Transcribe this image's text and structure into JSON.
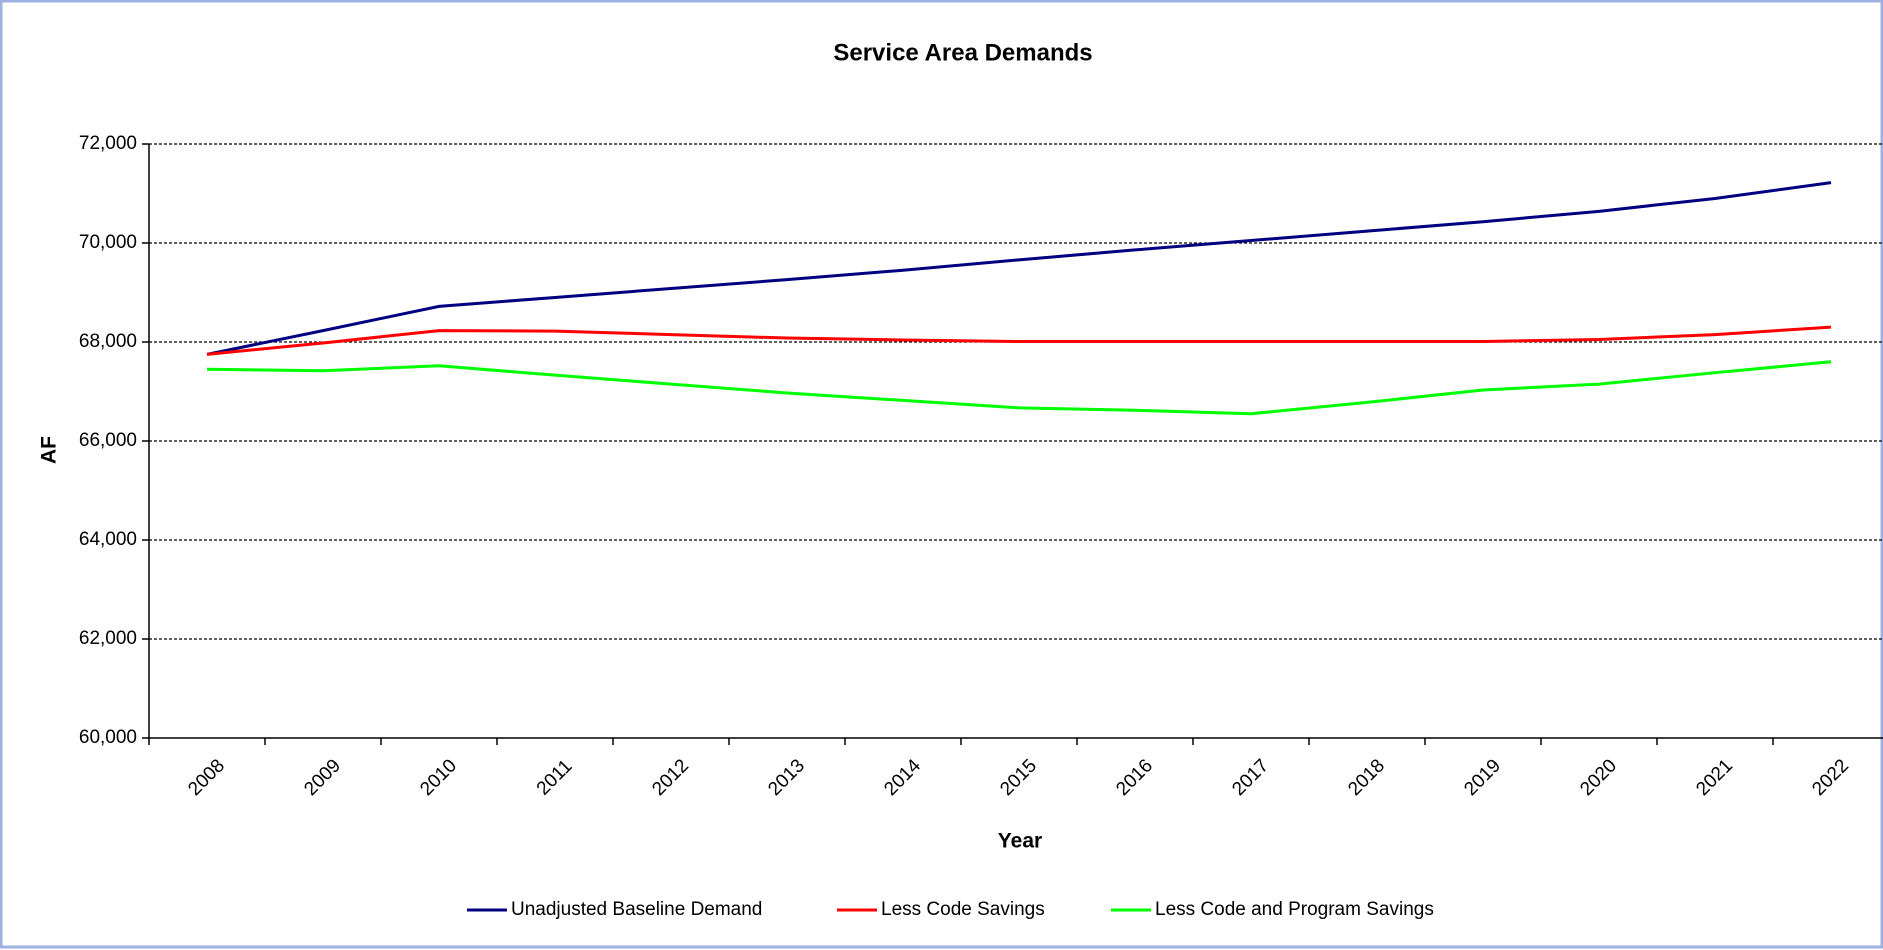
{
  "chart_data": {
    "type": "line",
    "title": "Service Area Demands",
    "xlabel": "Year",
    "ylabel": "AF",
    "categories": [
      "2008",
      "2009",
      "2010",
      "2011",
      "2012",
      "2013",
      "2014",
      "2015",
      "2016",
      "2017",
      "2018",
      "2019",
      "2020",
      "2021",
      "2022"
    ],
    "series": [
      {
        "name": "Unadjusted Baseline Demand",
        "color": "#000080",
        "values": [
          67750,
          68230,
          68720,
          68900,
          69080,
          69260,
          69450,
          69660,
          69860,
          70050,
          70240,
          70430,
          70640,
          70900,
          71220
        ]
      },
      {
        "name": "Less Code Savings",
        "color": "#ff0000",
        "values": [
          67750,
          67980,
          68230,
          68220,
          68150,
          68080,
          68040,
          68010,
          68010,
          68010,
          68010,
          68010,
          68050,
          68150,
          68300
        ]
      },
      {
        "name": "Less Code and Program Savings",
        "color": "#00ff00",
        "values": [
          67450,
          67420,
          67520,
          67330,
          67150,
          66970,
          66820,
          66670,
          66620,
          66550,
          66780,
          67030,
          67150,
          67380,
          67600
        ]
      }
    ],
    "ylim": [
      60000,
      72000
    ],
    "yticks": [
      {
        "value": 60000,
        "label": "60,000"
      },
      {
        "value": 62000,
        "label": "62,000"
      },
      {
        "value": 64000,
        "label": "64,000"
      },
      {
        "value": 66000,
        "label": "66,000"
      },
      {
        "value": 68000,
        "label": "68,000"
      },
      {
        "value": 70000,
        "label": "70,000"
      },
      {
        "value": 72000,
        "label": "72,000"
      }
    ],
    "grid": true,
    "legend": "bottom"
  }
}
